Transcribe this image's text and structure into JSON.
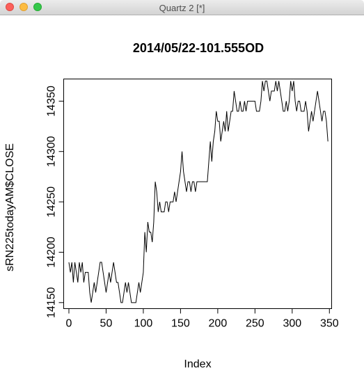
{
  "window": {
    "title": "Quartz 2 [*]"
  },
  "chart_data": {
    "type": "line",
    "title": "2014/05/22-101.555OD",
    "xlabel": "Index",
    "ylabel": "sRN225todayAM$CLOSE",
    "xlim": [
      -7,
      353
    ],
    "ylim": [
      14144,
      14372
    ],
    "xticks": [
      0,
      50,
      100,
      150,
      200,
      250,
      300,
      350
    ],
    "xtick_labels": [
      "0",
      "50",
      "100",
      "150",
      "200",
      "250",
      "300",
      "350"
    ],
    "yticks": [
      14150,
      14200,
      14250,
      14300,
      14350
    ],
    "ytick_labels": [
      "14150",
      "14200",
      "14250",
      "14300",
      "14350"
    ],
    "grid": false,
    "legend": "none",
    "series": [
      {
        "x": [
          0,
          2,
          4,
          6,
          8,
          10,
          12,
          14,
          16,
          18,
          20,
          22,
          24,
          26,
          28,
          30,
          32,
          34,
          36,
          38,
          40,
          42,
          44,
          46,
          48,
          50,
          52,
          54,
          56,
          58,
          60,
          62,
          64,
          66,
          68,
          70,
          72,
          74,
          76,
          78,
          80,
          82,
          84,
          86,
          88,
          90,
          92,
          94,
          96,
          98,
          100,
          102,
          104,
          106,
          108,
          110,
          112,
          114,
          116,
          118,
          120,
          122,
          124,
          126,
          128,
          130,
          132,
          134,
          136,
          138,
          140,
          142,
          144,
          146,
          148,
          150,
          152,
          154,
          156,
          158,
          160,
          162,
          164,
          166,
          168,
          170,
          172,
          174,
          176,
          178,
          180,
          182,
          184,
          186,
          188,
          190,
          192,
          194,
          196,
          198,
          200,
          202,
          204,
          206,
          208,
          210,
          212,
          214,
          216,
          218,
          220,
          222,
          224,
          226,
          228,
          230,
          232,
          234,
          236,
          238,
          240,
          242,
          244,
          246,
          248,
          250,
          252,
          254,
          256,
          258,
          260,
          262,
          264,
          266,
          268,
          270,
          272,
          274,
          276,
          278,
          280,
          282,
          284,
          286,
          288,
          290,
          292,
          294,
          296,
          298,
          300,
          302,
          304,
          306,
          308,
          310,
          312,
          314,
          316,
          318,
          320,
          322,
          324,
          326,
          328,
          330,
          332,
          334,
          336,
          338,
          340,
          342,
          344,
          346,
          348
        ],
        "y": [
          14190,
          14180,
          14190,
          14170,
          14190,
          14180,
          14170,
          14190,
          14180,
          14190,
          14170,
          14180,
          14180,
          14180,
          14160,
          14150,
          14160,
          14170,
          14160,
          14170,
          14180,
          14190,
          14190,
          14180,
          14170,
          14160,
          14170,
          14180,
          14170,
          14180,
          14190,
          14180,
          14170,
          14170,
          14160,
          14150,
          14150,
          14160,
          14170,
          14160,
          14170,
          14160,
          14150,
          14150,
          14150,
          14150,
          14160,
          14170,
          14160,
          14170,
          14180,
          14220,
          14200,
          14230,
          14220,
          14220,
          14210,
          14230,
          14270,
          14260,
          14240,
          14250,
          14240,
          14240,
          14240,
          14250,
          14250,
          14240,
          14250,
          14250,
          14250,
          14260,
          14250,
          14260,
          14270,
          14280,
          14300,
          14280,
          14270,
          14260,
          14270,
          14270,
          14260,
          14270,
          14270,
          14260,
          14270,
          14270,
          14270,
          14270,
          14270,
          14270,
          14270,
          14270,
          14290,
          14310,
          14290,
          14310,
          14320,
          14340,
          14330,
          14330,
          14310,
          14320,
          14330,
          14320,
          14340,
          14320,
          14330,
          14340,
          14340,
          14360,
          14350,
          14340,
          14340,
          14350,
          14340,
          14340,
          14350,
          14340,
          14350,
          14350,
          14350,
          14350,
          14350,
          14350,
          14340,
          14340,
          14340,
          14350,
          14370,
          14360,
          14370,
          14370,
          14360,
          14350,
          14360,
          14360,
          14360,
          14370,
          14360,
          14370,
          14360,
          14350,
          14340,
          14340,
          14350,
          14340,
          14350,
          14370,
          14360,
          14370,
          14350,
          14340,
          14350,
          14350,
          14340,
          14340,
          14340,
          14350,
          14340,
          14320,
          14330,
          14340,
          14330,
          14340,
          14350,
          14360,
          14350,
          14340,
          14330,
          14340,
          14340,
          14330,
          14310
        ]
      }
    ]
  }
}
